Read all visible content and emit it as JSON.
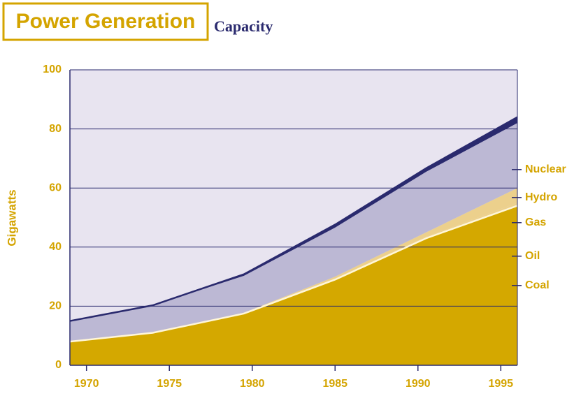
{
  "chart_data": {
    "type": "stacked_area",
    "title": "Power Generation",
    "subtitle": "Capacity",
    "y_label": "Gigawatts",
    "x": [
      1969,
      1974,
      1979.5,
      1985,
      1990.5,
      1996
    ],
    "xlim": [
      1969,
      1996
    ],
    "xticks": [
      1970,
      1975,
      1980,
      1985,
      1990,
      1995
    ],
    "ylim": [
      0,
      100
    ],
    "yticks": [
      0,
      20,
      40,
      60,
      80,
      100
    ],
    "grid": true,
    "series": [
      {
        "name": "Coal",
        "color": "#d4a800",
        "values": [
          8,
          11,
          17.5,
          29,
          43,
          54
        ]
      },
      {
        "name": "Oil",
        "color": "#ecd08c",
        "values": [
          0,
          0,
          0,
          0.3,
          0.5,
          1
        ]
      },
      {
        "name": "Gas",
        "color": "#ecd08c",
        "values": [
          0,
          0,
          0.3,
          0.7,
          1.5,
          5
        ]
      },
      {
        "name": "Hydro",
        "color": "#bcb8d4",
        "values": [
          7,
          9.3,
          12.5,
          16.6,
          20.5,
          22
        ]
      },
      {
        "name": "Nuclear",
        "color": "#2a2a6e",
        "values": [
          0,
          0,
          0.5,
          1,
          1.2,
          2
        ]
      }
    ]
  }
}
